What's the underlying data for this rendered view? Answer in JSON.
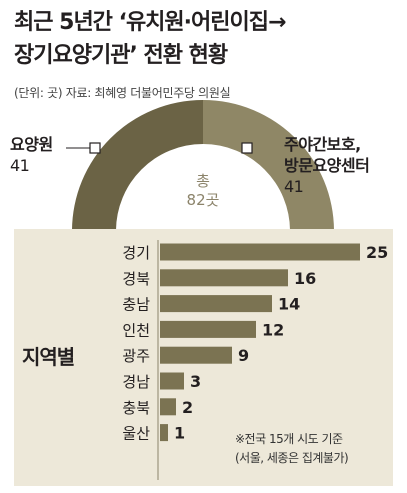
{
  "title": {
    "line1": "최근 5년간 ‘유치원·어린이집→",
    "line2": "장기요양기관’ 전환 현황"
  },
  "source": "(단위: 곳) 자료: 최혜영 더불어민주당 의원실",
  "colors": {
    "donut_dark": "#6b6345",
    "donut_light": "#8f8766",
    "bar": "#7b7352",
    "panel_bg": "#ede8d9",
    "total_text": "#8c846b"
  },
  "chart_data": [
    {
      "type": "pie",
      "style": "half-donut",
      "categories": [
        "요양원",
        "주야간보호,\n방문요양센터"
      ],
      "values": [
        41,
        41
      ],
      "labels": [
        {
          "name": "요양원",
          "value": "41"
        },
        {
          "name_line1": "주야간보호,",
          "name_line2": "방문요양센터",
          "value": "41"
        }
      ],
      "center_label": {
        "line1": "총",
        "line2": "82곳"
      }
    },
    {
      "type": "bar",
      "orientation": "horizontal",
      "group_label": "지역별",
      "categories": [
        "경기",
        "경북",
        "충남",
        "인천",
        "광주",
        "경남",
        "충북",
        "울산"
      ],
      "values": [
        25,
        16,
        14,
        12,
        9,
        3,
        2,
        1
      ],
      "value_labels": [
        "25",
        "16",
        "14",
        "12",
        "9",
        "3",
        "2",
        "1"
      ],
      "note": {
        "line1": "※전국 15개 시도 기준",
        "line2": "(서울, 세종은 집계불가)"
      }
    }
  ]
}
